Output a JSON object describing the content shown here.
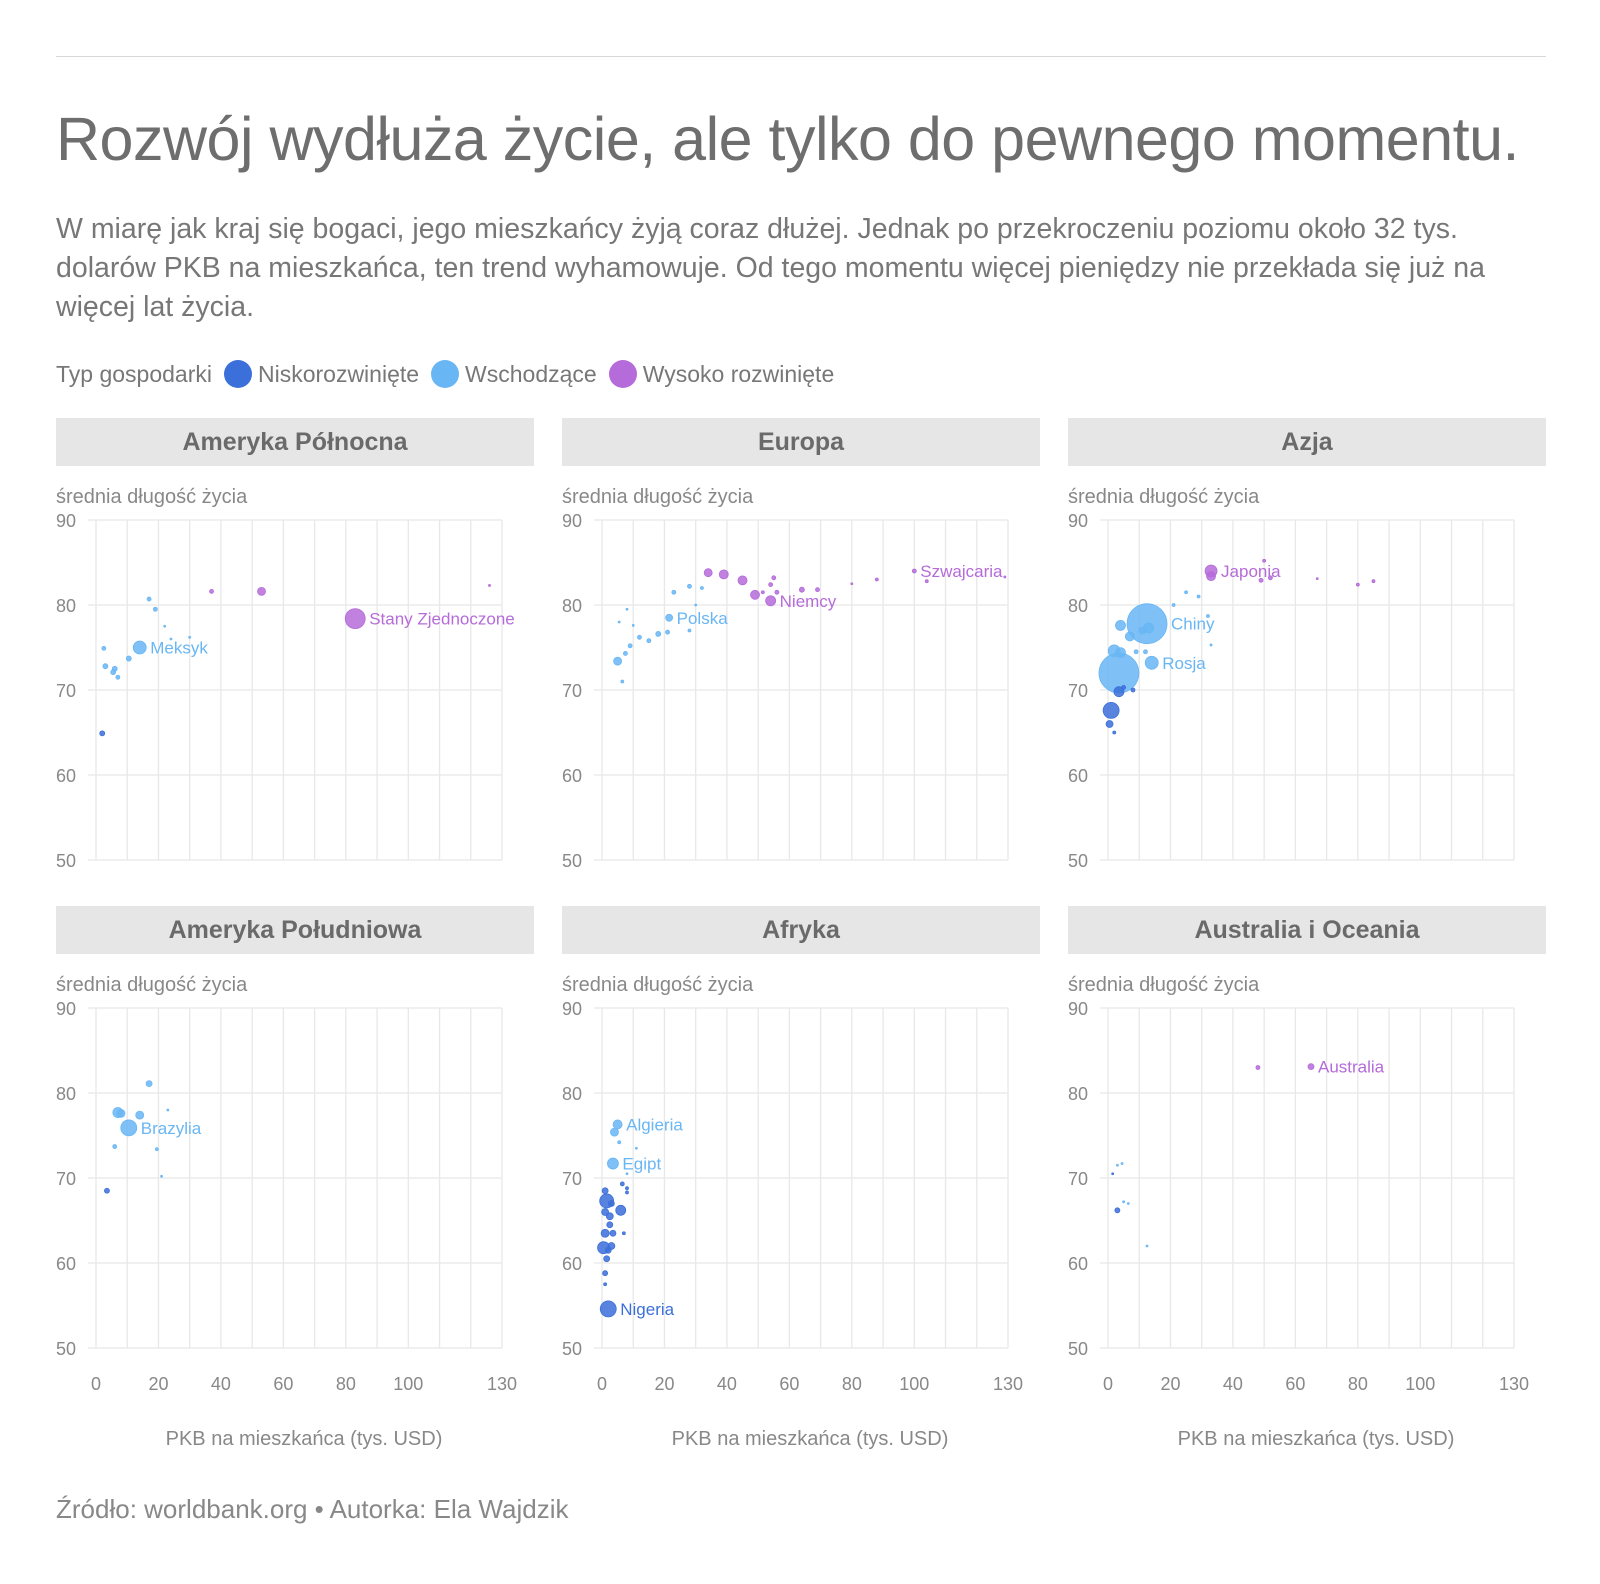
{
  "title": "Rozwój wydłuża życie, ale tylko do pewnego momentu.",
  "subtitle": "W miarę jak kraj się bogaci, jego mieszkańcy żyją coraz dłużej. Jednak po przekroczeniu poziomu około 32 tys. dolarów PKB na mieszkańca, ten trend wyhamowuje. Od tego momentu więcej pieniędzy nie przekłada się już na więcej lat życia.",
  "legend": {
    "label": "Typ gospodarki",
    "items": [
      {
        "key": "low",
        "label": "Niskorozwinięte",
        "color": "#3b6fd9"
      },
      {
        "key": "emerging",
        "label": "Wschodzące",
        "color": "#69b6f4"
      },
      {
        "key": "high",
        "label": "Wysoko rozwinięte",
        "color": "#b56bd9"
      }
    ]
  },
  "source": "Źródło: worldbank.org • Autorka: Ela Wajdzik",
  "chart_data": [
    {
      "type": "scatter",
      "panel": "Ameryka Północna",
      "ylabel": "średnia długość życia",
      "xlabel": "PKB na mieszkańca (tys. USD)",
      "xticks": [
        0,
        20,
        40,
        60,
        80,
        100,
        130
      ],
      "yticks": [
        50,
        60,
        70,
        80,
        90
      ],
      "xlim": [
        0,
        130
      ],
      "ylim": [
        50,
        90
      ],
      "points": [
        {
          "x": 2,
          "y": 64.9,
          "r": 2.5,
          "g": "low"
        },
        {
          "x": 2.5,
          "y": 74.9,
          "r": 2,
          "g": "emerging"
        },
        {
          "x": 3,
          "y": 72.8,
          "r": 2.5,
          "g": "emerging"
        },
        {
          "x": 5.5,
          "y": 72.1,
          "r": 2.5,
          "g": "emerging"
        },
        {
          "x": 6,
          "y": 72.5,
          "r": 2.5,
          "g": "emerging"
        },
        {
          "x": 7,
          "y": 71.5,
          "r": 2,
          "g": "emerging"
        },
        {
          "x": 10.5,
          "y": 73.7,
          "r": 2.5,
          "g": "emerging"
        },
        {
          "x": 14,
          "y": 75,
          "r": 6.5,
          "g": "emerging",
          "label": "Meksyk"
        },
        {
          "x": 17,
          "y": 80.7,
          "r": 2,
          "g": "emerging"
        },
        {
          "x": 19,
          "y": 79.5,
          "r": 2,
          "g": "emerging"
        },
        {
          "x": 22,
          "y": 77.5,
          "r": 1,
          "g": "emerging"
        },
        {
          "x": 24,
          "y": 76,
          "r": 1,
          "g": "emerging"
        },
        {
          "x": 30,
          "y": 76.2,
          "r": 1,
          "g": "emerging"
        },
        {
          "x": 37,
          "y": 81.6,
          "r": 2,
          "g": "high"
        },
        {
          "x": 53,
          "y": 81.6,
          "r": 4,
          "g": "high"
        },
        {
          "x": 83,
          "y": 78.4,
          "r": 10,
          "g": "high",
          "label": "Stany Zjednoczone"
        },
        {
          "x": 126,
          "y": 82.3,
          "r": 1,
          "g": "high"
        }
      ]
    },
    {
      "type": "scatter",
      "panel": "Europa",
      "ylabel": "średnia długość życia",
      "xlabel": "PKB na mieszkańca (tys. USD)",
      "xticks": [
        0,
        20,
        40,
        60,
        80,
        100,
        130
      ],
      "yticks": [
        50,
        60,
        70,
        80,
        90
      ],
      "xlim": [
        0,
        130
      ],
      "ylim": [
        50,
        90
      ],
      "points": [
        {
          "x": 5,
          "y": 73.4,
          "r": 4,
          "g": "emerging"
        },
        {
          "x": 5.5,
          "y": 78,
          "r": 1,
          "g": "emerging"
        },
        {
          "x": 6.5,
          "y": 71,
          "r": 1.5,
          "g": "emerging"
        },
        {
          "x": 7.5,
          "y": 74.3,
          "r": 2,
          "g": "emerging"
        },
        {
          "x": 8,
          "y": 79.5,
          "r": 1,
          "g": "emerging"
        },
        {
          "x": 9,
          "y": 75.2,
          "r": 2,
          "g": "emerging"
        },
        {
          "x": 10,
          "y": 77.6,
          "r": 1,
          "g": "emerging"
        },
        {
          "x": 12,
          "y": 76.2,
          "r": 2,
          "g": "emerging"
        },
        {
          "x": 15,
          "y": 75.8,
          "r": 2,
          "g": "emerging"
        },
        {
          "x": 18,
          "y": 76.6,
          "r": 2.5,
          "g": "emerging"
        },
        {
          "x": 21,
          "y": 76.8,
          "r": 2,
          "g": "emerging"
        },
        {
          "x": 21.5,
          "y": 78.5,
          "r": 3.5,
          "g": "emerging",
          "label": "Polska"
        },
        {
          "x": 23,
          "y": 81.5,
          "r": 2,
          "g": "emerging"
        },
        {
          "x": 28,
          "y": 82.2,
          "r": 2,
          "g": "emerging"
        },
        {
          "x": 28,
          "y": 77,
          "r": 1.5,
          "g": "emerging"
        },
        {
          "x": 30,
          "y": 80,
          "r": 1,
          "g": "emerging"
        },
        {
          "x": 32,
          "y": 82,
          "r": 1.5,
          "g": "emerging"
        },
        {
          "x": 34,
          "y": 83.8,
          "r": 4,
          "g": "high"
        },
        {
          "x": 39,
          "y": 83.6,
          "r": 4.5,
          "g": "high"
        },
        {
          "x": 45,
          "y": 82.9,
          "r": 4.5,
          "g": "high"
        },
        {
          "x": 49,
          "y": 81.2,
          "r": 4.5,
          "g": "high"
        },
        {
          "x": 51.5,
          "y": 81.5,
          "r": 1.5,
          "g": "high"
        },
        {
          "x": 54,
          "y": 82.4,
          "r": 2,
          "g": "high"
        },
        {
          "x": 55,
          "y": 83.2,
          "r": 2,
          "g": "high"
        },
        {
          "x": 56,
          "y": 81.5,
          "r": 2,
          "g": "high"
        },
        {
          "x": 54,
          "y": 80.5,
          "r": 5,
          "g": "high",
          "label": "Niemcy"
        },
        {
          "x": 64,
          "y": 81.8,
          "r": 2.5,
          "g": "high"
        },
        {
          "x": 69,
          "y": 81.8,
          "r": 2,
          "g": "high"
        },
        {
          "x": 80,
          "y": 82.5,
          "r": 1,
          "g": "high"
        },
        {
          "x": 88,
          "y": 83,
          "r": 1.5,
          "g": "high"
        },
        {
          "x": 100,
          "y": 84,
          "r": 2,
          "g": "high",
          "label": "Szwajcaria"
        },
        {
          "x": 104,
          "y": 82.8,
          "r": 1.5,
          "g": "high"
        },
        {
          "x": 129,
          "y": 83.3,
          "r": 1,
          "g": "high"
        }
      ]
    },
    {
      "type": "scatter",
      "panel": "Azja",
      "ylabel": "średnia długość życia",
      "xlabel": "PKB na mieszkańca (tys. USD)",
      "xticks": [
        0,
        20,
        40,
        60,
        80,
        100,
        130
      ],
      "yticks": [
        50,
        60,
        70,
        80,
        90
      ],
      "xlim": [
        0,
        130
      ],
      "ylim": [
        50,
        90
      ],
      "points": [
        {
          "x": 1,
          "y": 67.6,
          "r": 8,
          "g": "low"
        },
        {
          "x": 0.5,
          "y": 66,
          "r": 3.5,
          "g": "low"
        },
        {
          "x": 2,
          "y": 65,
          "r": 1.5,
          "g": "low"
        },
        {
          "x": 3.5,
          "y": 69.8,
          "r": 5,
          "g": "low"
        },
        {
          "x": 5,
          "y": 70.3,
          "r": 2,
          "g": "low"
        },
        {
          "x": 8,
          "y": 70,
          "r": 2,
          "g": "low"
        },
        {
          "x": 3.5,
          "y": 72,
          "r": 20,
          "g": "emerging"
        },
        {
          "x": 2,
          "y": 74.6,
          "r": 6,
          "g": "emerging"
        },
        {
          "x": 4,
          "y": 74.4,
          "r": 5,
          "g": "emerging"
        },
        {
          "x": 4,
          "y": 77.6,
          "r": 5,
          "g": "emerging"
        },
        {
          "x": 7,
          "y": 76.3,
          "r": 4.5,
          "g": "emerging"
        },
        {
          "x": 9,
          "y": 74.5,
          "r": 2,
          "g": "emerging"
        },
        {
          "x": 11,
          "y": 77,
          "r": 3.5,
          "g": "emerging"
        },
        {
          "x": 13,
          "y": 77.3,
          "r": 5,
          "g": "emerging"
        },
        {
          "x": 12.5,
          "y": 77.8,
          "r": 20,
          "g": "emerging",
          "label": "Chiny"
        },
        {
          "x": 14,
          "y": 73.2,
          "r": 6.5,
          "g": "emerging",
          "label": "Rosja"
        },
        {
          "x": 12,
          "y": 74.5,
          "r": 2,
          "g": "emerging"
        },
        {
          "x": 21,
          "y": 80,
          "r": 1.5,
          "g": "emerging"
        },
        {
          "x": 25,
          "y": 81.5,
          "r": 1.5,
          "g": "emerging"
        },
        {
          "x": 29,
          "y": 81,
          "r": 1.5,
          "g": "emerging"
        },
        {
          "x": 32,
          "y": 78.7,
          "r": 1.5,
          "g": "emerging"
        },
        {
          "x": 33,
          "y": 75.3,
          "r": 1,
          "g": "emerging"
        },
        {
          "x": 33,
          "y": 83.4,
          "r": 4.5,
          "g": "high"
        },
        {
          "x": 33,
          "y": 84,
          "r": 6,
          "g": "high",
          "label": "Japonia"
        },
        {
          "x": 49,
          "y": 82.9,
          "r": 2,
          "g": "high"
        },
        {
          "x": 50,
          "y": 85.2,
          "r": 1.5,
          "g": "high"
        },
        {
          "x": 52,
          "y": 83.2,
          "r": 2,
          "g": "high"
        },
        {
          "x": 67,
          "y": 83.1,
          "r": 1,
          "g": "high"
        },
        {
          "x": 80,
          "y": 82.4,
          "r": 1.5,
          "g": "high"
        },
        {
          "x": 85,
          "y": 82.8,
          "r": 1.5,
          "g": "high"
        }
      ]
    },
    {
      "type": "scatter",
      "panel": "Ameryka Południowa",
      "ylabel": "średnia długość życia",
      "xlabel": "PKB na mieszkańca (tys. USD)",
      "xticks": [
        0,
        20,
        40,
        60,
        80,
        100,
        130
      ],
      "yticks": [
        50,
        60,
        70,
        80,
        90
      ],
      "xlim": [
        0,
        130
      ],
      "ylim": [
        50,
        90
      ],
      "points": [
        {
          "x": 3.5,
          "y": 68.5,
          "r": 2.5,
          "g": "low"
        },
        {
          "x": 6,
          "y": 73.7,
          "r": 2,
          "g": "emerging"
        },
        {
          "x": 7,
          "y": 77.7,
          "r": 5,
          "g": "emerging"
        },
        {
          "x": 8,
          "y": 77.6,
          "r": 4,
          "g": "emerging"
        },
        {
          "x": 10.5,
          "y": 75.9,
          "r": 8,
          "g": "emerging",
          "label": "Brazylia"
        },
        {
          "x": 14,
          "y": 77.4,
          "r": 4,
          "g": "emerging"
        },
        {
          "x": 17,
          "y": 81.1,
          "r": 3,
          "g": "emerging"
        },
        {
          "x": 19.5,
          "y": 73.4,
          "r": 1.5,
          "g": "emerging"
        },
        {
          "x": 23,
          "y": 78,
          "r": 1,
          "g": "emerging"
        },
        {
          "x": 21,
          "y": 70.2,
          "r": 1,
          "g": "emerging"
        }
      ]
    },
    {
      "type": "scatter",
      "panel": "Afryka",
      "ylabel": "średnia długość życia",
      "xlabel": "PKB na mieszkańca (tys. USD)",
      "xticks": [
        0,
        20,
        40,
        60,
        80,
        100,
        130
      ],
      "yticks": [
        50,
        60,
        70,
        80,
        90
      ],
      "xlim": [
        0,
        130
      ],
      "ylim": [
        50,
        90
      ],
      "points": [
        {
          "x": 2,
          "y": 54.6,
          "r": 8,
          "g": "low",
          "label": "Nigeria"
        },
        {
          "x": 0.5,
          "y": 61.8,
          "r": 6,
          "g": "low"
        },
        {
          "x": 1,
          "y": 63.5,
          "r": 4,
          "g": "low"
        },
        {
          "x": 1.5,
          "y": 67.3,
          "r": 7,
          "g": "low"
        },
        {
          "x": 1,
          "y": 66,
          "r": 3.5,
          "g": "low"
        },
        {
          "x": 2.5,
          "y": 65.5,
          "r": 3.5,
          "g": "low"
        },
        {
          "x": 2,
          "y": 61.5,
          "r": 3,
          "g": "low"
        },
        {
          "x": 3,
          "y": 62,
          "r": 3.5,
          "g": "low"
        },
        {
          "x": 2.5,
          "y": 64.5,
          "r": 3,
          "g": "low"
        },
        {
          "x": 1.5,
          "y": 60.5,
          "r": 3,
          "g": "low"
        },
        {
          "x": 3.5,
          "y": 63.5,
          "r": 3,
          "g": "low"
        },
        {
          "x": 1,
          "y": 68.5,
          "r": 3,
          "g": "low"
        },
        {
          "x": 1,
          "y": 58.8,
          "r": 2.5,
          "g": "low"
        },
        {
          "x": 1,
          "y": 57.5,
          "r": 1.5,
          "g": "low"
        },
        {
          "x": 3,
          "y": 67,
          "r": 3,
          "g": "low"
        },
        {
          "x": 6,
          "y": 66.2,
          "r": 5,
          "g": "low"
        },
        {
          "x": 6.5,
          "y": 69.3,
          "r": 2,
          "g": "low"
        },
        {
          "x": 8,
          "y": 68.8,
          "r": 1.5,
          "g": "low"
        },
        {
          "x": 8,
          "y": 68.3,
          "r": 1.5,
          "g": "low"
        },
        {
          "x": 7,
          "y": 63.5,
          "r": 1.5,
          "g": "low"
        },
        {
          "x": 3.5,
          "y": 71.7,
          "r": 5.5,
          "g": "emerging",
          "label": "Egipt"
        },
        {
          "x": 4,
          "y": 75.4,
          "r": 4,
          "g": "emerging"
        },
        {
          "x": 5,
          "y": 76.3,
          "r": 4.5,
          "g": "emerging",
          "label": "Algieria"
        },
        {
          "x": 11,
          "y": 73.5,
          "r": 1,
          "g": "emerging"
        },
        {
          "x": 5.5,
          "y": 74.2,
          "r": 1.5,
          "g": "emerging"
        },
        {
          "x": 8,
          "y": 70.5,
          "r": 1,
          "g": "emerging"
        }
      ]
    },
    {
      "type": "scatter",
      "panel": "Australia i Oceania",
      "ylabel": "średnia długość życia",
      "xlabel": "PKB na mieszkańca (tys. USD)",
      "xticks": [
        0,
        20,
        40,
        60,
        80,
        100,
        130
      ],
      "yticks": [
        50,
        60,
        70,
        80,
        90
      ],
      "xlim": [
        0,
        130
      ],
      "ylim": [
        50,
        90
      ],
      "points": [
        {
          "x": 3,
          "y": 66.2,
          "r": 2.5,
          "g": "low"
        },
        {
          "x": 1.5,
          "y": 70.5,
          "r": 1,
          "g": "low"
        },
        {
          "x": 3,
          "y": 71.5,
          "r": 1,
          "g": "emerging"
        },
        {
          "x": 4.5,
          "y": 71.7,
          "r": 1,
          "g": "emerging"
        },
        {
          "x": 5,
          "y": 67.2,
          "r": 1,
          "g": "emerging"
        },
        {
          "x": 6.5,
          "y": 67,
          "r": 1,
          "g": "emerging"
        },
        {
          "x": 12.5,
          "y": 62,
          "r": 1,
          "g": "emerging"
        },
        {
          "x": 48,
          "y": 83,
          "r": 2,
          "g": "high"
        },
        {
          "x": 65,
          "y": 83.1,
          "r": 3,
          "g": "high",
          "label": "Australia"
        }
      ]
    }
  ]
}
